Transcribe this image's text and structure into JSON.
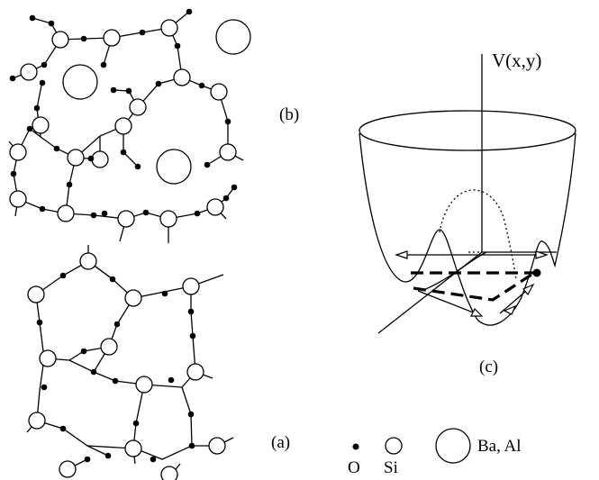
{
  "panels": {
    "a": "(a)",
    "b": "(b)",
    "c": "(c)"
  },
  "potential_label": "V(x,y)",
  "legend": {
    "oxygen": "O",
    "silicon": "Si",
    "large_ion": "Ba, Al"
  }
}
